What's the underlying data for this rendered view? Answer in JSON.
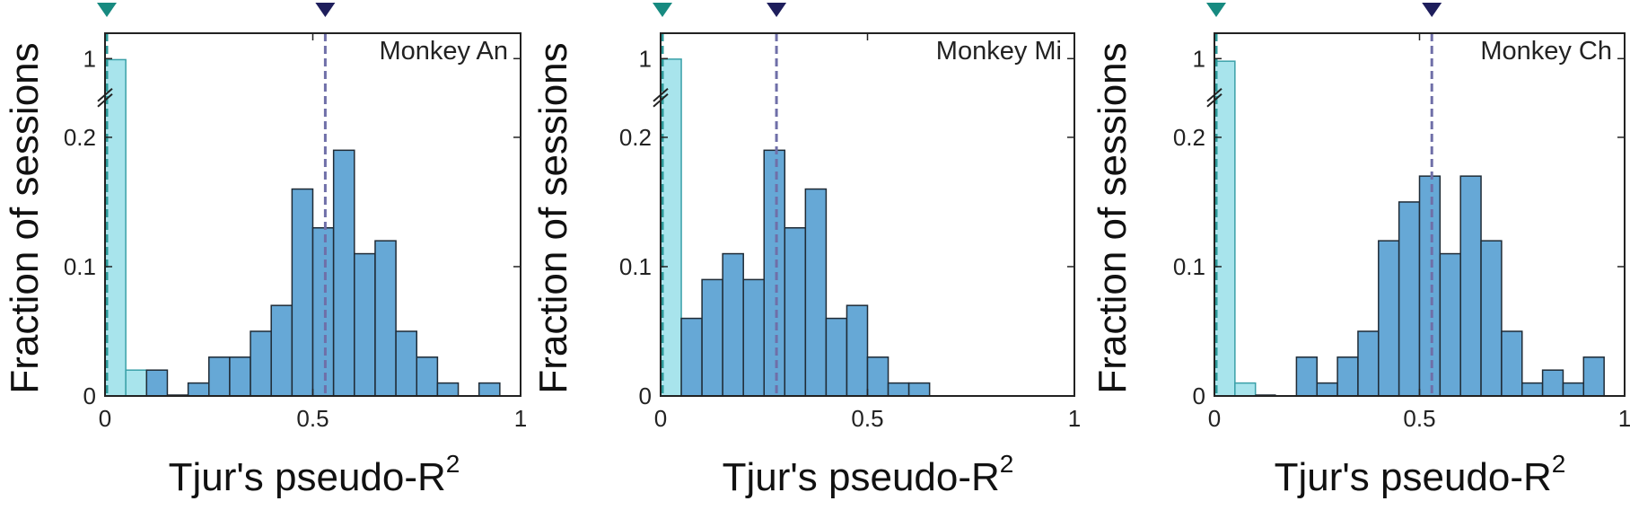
{
  "colors": {
    "bar_fill": "#66a8d6",
    "bar_stroke": "#1f2b36",
    "shuffle_fill": "#a8e4ec",
    "shuffle_stroke": "#3aa0a8",
    "shuffle_line": "#2d9a9a",
    "shuffle_marker": "#178a80",
    "median_line": "#6f6fa8",
    "median_marker": "#1e1e5c",
    "axis": "#222222"
  },
  "chart_data": [
    {
      "type": "bar",
      "panel_label": "Monkey An",
      "xlabel": "Tjur's pseudo-R",
      "xlabel_superscript": "2",
      "ylabel": "Fraction of sessions",
      "xlim": [
        0,
        1
      ],
      "x_ticks": [
        "0",
        "0.5",
        "1"
      ],
      "y_ticks": [
        "0",
        "0.1",
        "0.2",
        "1"
      ],
      "y_axis_break": true,
      "bin_width": 0.05,
      "series": [
        {
          "role": "shuffle",
          "bins": [
            {
              "x0": 0,
              "x1": 0.05,
              "value": 0.98
            },
            {
              "x0": 0.05,
              "x1": 0.1,
              "value": 0.02
            }
          ],
          "median": 0.0
        },
        {
          "role": "data",
          "bins": [
            {
              "x0": 0.1,
              "x1": 0.15,
              "value": 0.02
            },
            {
              "x0": 0.15,
              "x1": 0.2,
              "value": 0.0
            },
            {
              "x0": 0.2,
              "x1": 0.25,
              "value": 0.01
            },
            {
              "x0": 0.25,
              "x1": 0.3,
              "value": 0.03
            },
            {
              "x0": 0.3,
              "x1": 0.35,
              "value": 0.03
            },
            {
              "x0": 0.35,
              "x1": 0.4,
              "value": 0.05
            },
            {
              "x0": 0.4,
              "x1": 0.45,
              "value": 0.07
            },
            {
              "x0": 0.45,
              "x1": 0.5,
              "value": 0.16
            },
            {
              "x0": 0.5,
              "x1": 0.55,
              "value": 0.13
            },
            {
              "x0": 0.55,
              "x1": 0.6,
              "value": 0.19
            },
            {
              "x0": 0.6,
              "x1": 0.65,
              "value": 0.11
            },
            {
              "x0": 0.65,
              "x1": 0.7,
              "value": 0.12
            },
            {
              "x0": 0.7,
              "x1": 0.75,
              "value": 0.05
            },
            {
              "x0": 0.75,
              "x1": 0.8,
              "value": 0.03
            },
            {
              "x0": 0.8,
              "x1": 0.85,
              "value": 0.01
            },
            {
              "x0": 0.9,
              "x1": 0.95,
              "value": 0.01
            }
          ],
          "median": 0.53
        }
      ]
    },
    {
      "type": "bar",
      "panel_label": "Monkey Mi",
      "xlabel": "Tjur's pseudo-R",
      "xlabel_superscript": "2",
      "ylabel": "Fraction of sessions",
      "xlim": [
        0,
        1
      ],
      "x_ticks": [
        "0",
        "0.5",
        "1"
      ],
      "y_ticks": [
        "0",
        "0.1",
        "0.2",
        "1"
      ],
      "y_axis_break": true,
      "bin_width": 0.05,
      "series": [
        {
          "role": "shuffle",
          "bins": [
            {
              "x0": 0,
              "x1": 0.05,
              "value": 0.99
            }
          ],
          "median": 0.0
        },
        {
          "role": "data",
          "bins": [
            {
              "x0": 0.05,
              "x1": 0.1,
              "value": 0.06
            },
            {
              "x0": 0.1,
              "x1": 0.15,
              "value": 0.09
            },
            {
              "x0": 0.15,
              "x1": 0.2,
              "value": 0.11
            },
            {
              "x0": 0.2,
              "x1": 0.25,
              "value": 0.09
            },
            {
              "x0": 0.25,
              "x1": 0.3,
              "value": 0.19
            },
            {
              "x0": 0.3,
              "x1": 0.35,
              "value": 0.13
            },
            {
              "x0": 0.35,
              "x1": 0.4,
              "value": 0.16
            },
            {
              "x0": 0.4,
              "x1": 0.45,
              "value": 0.06
            },
            {
              "x0": 0.45,
              "x1": 0.5,
              "value": 0.07
            },
            {
              "x0": 0.5,
              "x1": 0.55,
              "value": 0.03
            },
            {
              "x0": 0.55,
              "x1": 0.6,
              "value": 0.01
            },
            {
              "x0": 0.6,
              "x1": 0.65,
              "value": 0.01
            }
          ],
          "median": 0.28
        }
      ]
    },
    {
      "type": "bar",
      "panel_label": "Monkey Ch",
      "xlabel": "Tjur's pseudo-R",
      "xlabel_superscript": "2",
      "ylabel": "Fraction of sessions",
      "xlim": [
        0,
        1
      ],
      "x_ticks": [
        "0",
        "0.5",
        "1"
      ],
      "y_ticks": [
        "0",
        "0.1",
        "0.2",
        "1"
      ],
      "y_axis_break": true,
      "bin_width": 0.05,
      "series": [
        {
          "role": "shuffle",
          "bins": [
            {
              "x0": 0,
              "x1": 0.05,
              "value": 0.95
            },
            {
              "x0": 0.05,
              "x1": 0.1,
              "value": 0.01
            }
          ],
          "median": 0.0
        },
        {
          "role": "data",
          "bins": [
            {
              "x0": 0.1,
              "x1": 0.15,
              "value": 0.0
            },
            {
              "x0": 0.2,
              "x1": 0.25,
              "value": 0.03
            },
            {
              "x0": 0.25,
              "x1": 0.3,
              "value": 0.01
            },
            {
              "x0": 0.3,
              "x1": 0.35,
              "value": 0.03
            },
            {
              "x0": 0.35,
              "x1": 0.4,
              "value": 0.05
            },
            {
              "x0": 0.4,
              "x1": 0.45,
              "value": 0.12
            },
            {
              "x0": 0.45,
              "x1": 0.5,
              "value": 0.15
            },
            {
              "x0": 0.5,
              "x1": 0.55,
              "value": 0.17
            },
            {
              "x0": 0.55,
              "x1": 0.6,
              "value": 0.11
            },
            {
              "x0": 0.6,
              "x1": 0.65,
              "value": 0.17
            },
            {
              "x0": 0.65,
              "x1": 0.7,
              "value": 0.12
            },
            {
              "x0": 0.7,
              "x1": 0.75,
              "value": 0.05
            },
            {
              "x0": 0.75,
              "x1": 0.8,
              "value": 0.01
            },
            {
              "x0": 0.8,
              "x1": 0.85,
              "value": 0.02
            },
            {
              "x0": 0.85,
              "x1": 0.9,
              "value": 0.01
            },
            {
              "x0": 0.9,
              "x1": 0.95,
              "value": 0.03
            }
          ],
          "median": 0.53
        }
      ]
    }
  ]
}
